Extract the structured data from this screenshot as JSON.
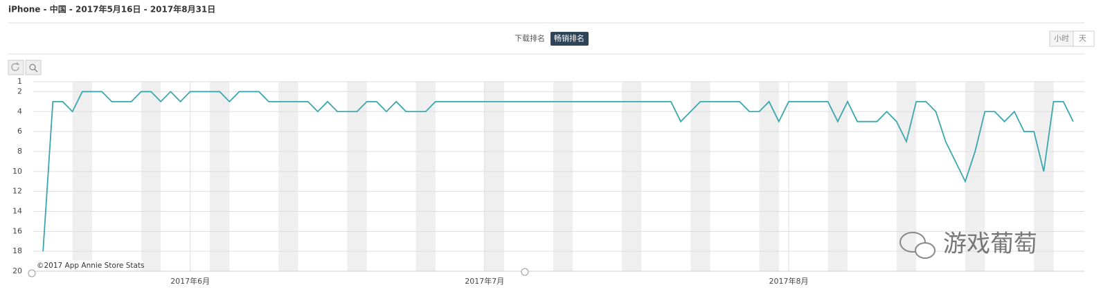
{
  "header": {
    "title": "iPhone - 中国 - 2017年5月16日 - 2017年8月31日"
  },
  "tabs": [
    "下载排名",
    "畅销排名"
  ],
  "granularity": [
    "小时",
    "天"
  ],
  "chart_data": {
    "type": "line",
    "values": [
      18,
      3,
      3,
      4,
      2,
      2,
      2,
      3,
      3,
      3,
      2,
      2,
      3,
      2,
      3,
      2,
      2,
      2,
      2,
      3,
      2,
      2,
      2,
      3,
      3,
      3,
      3,
      3,
      4,
      3,
      4,
      4,
      4,
      3,
      3,
      4,
      3,
      4,
      4,
      4,
      3,
      3,
      3,
      3,
      3,
      3,
      3,
      3,
      3,
      3,
      3,
      3,
      3,
      3,
      3,
      3,
      3,
      3,
      3,
      3,
      3,
      3,
      3,
      3,
      3,
      5,
      4,
      3,
      3,
      3,
      3,
      3,
      4,
      4,
      3,
      5,
      3,
      3,
      3,
      3,
      3,
      5,
      3,
      5,
      5,
      5,
      4,
      5,
      7,
      3,
      3,
      4,
      7,
      9,
      11,
      8,
      4,
      4,
      5,
      4,
      6,
      6,
      10,
      3,
      3,
      5
    ],
    "color": "#3aa6ae",
    "xlim": [
      -1,
      106
    ],
    "xticks": [
      {
        "value": 15,
        "label": "2017年6月"
      },
      {
        "value": 45,
        "label": "2017年7月"
      },
      {
        "value": 76,
        "label": "2017年8月"
      }
    ],
    "ylim": [
      20,
      1
    ],
    "yticks": [
      1,
      2,
      4,
      6,
      8,
      10,
      12,
      14,
      16,
      18,
      20
    ],
    "grid": true,
    "credit": "©2017 App Annie Store Stats",
    "watermark": "游戏葡萄"
  }
}
